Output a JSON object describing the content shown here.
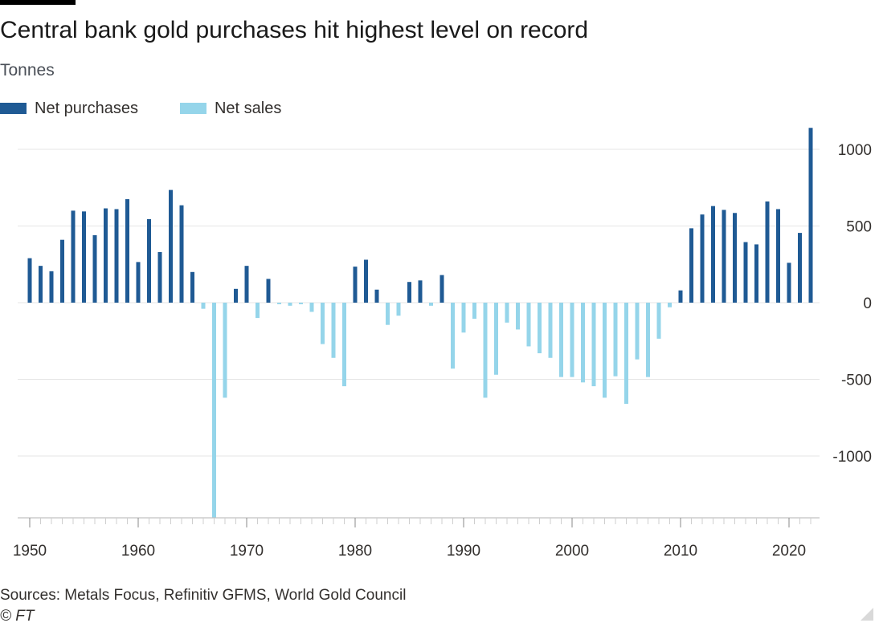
{
  "title": "Central bank gold purchases hit highest level on record",
  "subtitle": "Tonnes",
  "legend": {
    "purchases_label": "Net purchases",
    "sales_label": "Net sales"
  },
  "colors": {
    "purchases": "#1f5a94",
    "sales": "#95d5ea",
    "gridline": "#e6e6e6",
    "axis": "#b3b3b3",
    "text": "#33302e"
  },
  "footer": {
    "sources": "Sources: Metals Focus, Refinitiv GFMS, World Gold Council",
    "copyright": "© FT"
  },
  "chart_data": {
    "type": "bar",
    "title": "Central bank gold purchases hit highest level on record",
    "ylabel": "Tonnes",
    "xlabel": "",
    "xlim": [
      1950,
      2022
    ],
    "ylim": [
      -1400,
      1150
    ],
    "y_ticks": [
      1000,
      500,
      0,
      -500,
      -1000
    ],
    "y_tick_labels": [
      "1000",
      "500",
      "0",
      "-500",
      "-1000"
    ],
    "x_ticks": [
      1950,
      1960,
      1970,
      1980,
      1990,
      2000,
      2010,
      2020
    ],
    "x_tick_labels": [
      "1950",
      "1960",
      "1970",
      "1980",
      "1990",
      "2000",
      "2010",
      "2020"
    ],
    "grid": true,
    "y_axis_position": "right",
    "legend_position": "top-left",
    "series": [
      {
        "name": "Net purchases / Net sales",
        "x": [
          1950,
          1951,
          1952,
          1953,
          1954,
          1955,
          1956,
          1957,
          1958,
          1959,
          1960,
          1961,
          1962,
          1963,
          1964,
          1965,
          1966,
          1967,
          1968,
          1969,
          1970,
          1971,
          1972,
          1973,
          1974,
          1975,
          1976,
          1977,
          1978,
          1979,
          1980,
          1981,
          1982,
          1983,
          1984,
          1985,
          1986,
          1987,
          1988,
          1989,
          1990,
          1991,
          1992,
          1993,
          1994,
          1995,
          1996,
          1997,
          1998,
          1999,
          2000,
          2001,
          2002,
          2003,
          2004,
          2005,
          2006,
          2007,
          2008,
          2009,
          2010,
          2011,
          2012,
          2013,
          2014,
          2015,
          2016,
          2017,
          2018,
          2019,
          2020,
          2021,
          2022
        ],
        "values": [
          290,
          240,
          205,
          410,
          600,
          595,
          440,
          615,
          610,
          675,
          265,
          545,
          330,
          735,
          635,
          200,
          -40,
          -1400,
          -620,
          90,
          240,
          -100,
          155,
          -10,
          -20,
          -10,
          -60,
          -270,
          -360,
          -545,
          235,
          280,
          85,
          -145,
          -85,
          135,
          145,
          -20,
          180,
          -430,
          -195,
          -105,
          -620,
          -470,
          -130,
          -175,
          -285,
          -330,
          -360,
          -485,
          -485,
          -520,
          -545,
          -620,
          -480,
          -660,
          -370,
          -485,
          -235,
          -30,
          80,
          485,
          575,
          630,
          605,
          585,
          395,
          380,
          660,
          610,
          260,
          455,
          1140
        ]
      }
    ]
  }
}
